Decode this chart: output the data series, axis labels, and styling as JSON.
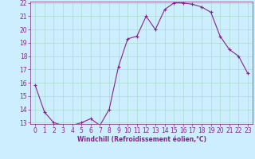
{
  "x": [
    0,
    1,
    2,
    3,
    4,
    5,
    6,
    7,
    8,
    9,
    10,
    11,
    12,
    13,
    14,
    15,
    16,
    17,
    18,
    19,
    20,
    21,
    22,
    23
  ],
  "y": [
    15.8,
    13.8,
    13.0,
    12.8,
    12.8,
    13.0,
    13.3,
    12.8,
    14.0,
    17.2,
    19.3,
    19.5,
    21.0,
    20.0,
    21.5,
    22.0,
    22.0,
    21.9,
    21.7,
    21.3,
    19.5,
    18.5,
    18.0,
    16.7
  ],
  "line_color": "#882288",
  "marker": "+",
  "marker_size": 3.5,
  "marker_lw": 0.8,
  "bg_color": "#cceeff",
  "grid_color": "#aaddcc",
  "xlabel": "Windchill (Refroidissement éolien,°C)",
  "ylim_min": 13,
  "ylim_max": 22,
  "xlim_min": -0.5,
  "xlim_max": 23.5,
  "yticks": [
    13,
    14,
    15,
    16,
    17,
    18,
    19,
    20,
    21,
    22
  ],
  "xticks": [
    0,
    1,
    2,
    3,
    4,
    5,
    6,
    7,
    8,
    9,
    10,
    11,
    12,
    13,
    14,
    15,
    16,
    17,
    18,
    19,
    20,
    21,
    22,
    23
  ],
  "axis_fontsize": 5.5,
  "tick_fontsize": 5.5,
  "linewidth": 0.8
}
